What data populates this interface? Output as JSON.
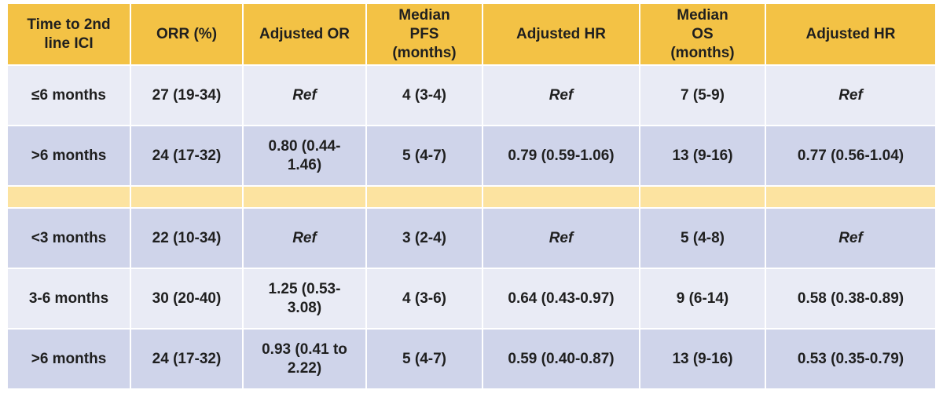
{
  "table": {
    "header": [
      "Time to 2nd line ICI",
      "ORR (%)",
      "Adjusted OR",
      "Median PFS (months)",
      "Adjusted HR",
      "Median OS (months)",
      "Adjusted HR"
    ],
    "groups": [
      {
        "rows": [
          [
            "≤6 months",
            "27 (19-34)",
            "Ref",
            "4 (3-4)",
            "Ref",
            "7 (5-9)",
            "Ref"
          ],
          [
            ">6 months",
            "24 (17-32)",
            "0.80 (0.44-1.46)",
            "5 (4-7)",
            "0.79 (0.59-1.06)",
            "13 (9-16)",
            "0.77 (0.56-1.04)"
          ]
        ]
      },
      {
        "rows": [
          [
            "<3 months",
            "22 (10-34)",
            "Ref",
            "3 (2-4)",
            "Ref",
            "5 (4-8)",
            "Ref"
          ],
          [
            "3-6 months",
            "30 (20-40)",
            "1.25 (0.53-3.08)",
            "4 (3-6)",
            "0.64 (0.43-0.97)",
            "9 (6-14)",
            "0.58 (0.38-0.89)"
          ],
          [
            ">6 months",
            "24 (17-32)",
            "0.93 (0.41 to 2.22)",
            "5 (4-7)",
            "0.59 (0.40-0.87)",
            "13 (9-16)",
            "0.53 (0.35-0.79)"
          ]
        ]
      }
    ]
  }
}
